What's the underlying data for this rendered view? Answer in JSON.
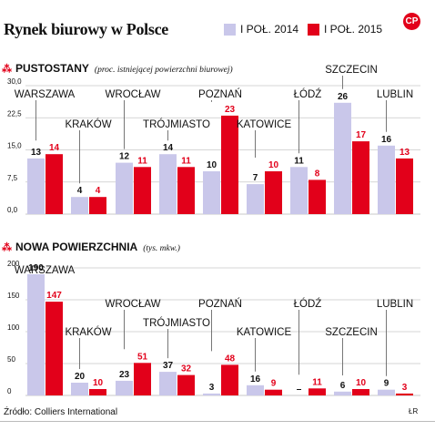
{
  "header": {
    "title": "Rynek biurowy w Polsce",
    "logo": "CP"
  },
  "legend": [
    {
      "label": "I POŁ. 2014",
      "color": "#c9c7ea"
    },
    {
      "label": "I POŁ. 2015",
      "color": "#e2001a"
    }
  ],
  "footer": {
    "source": "Źródło: Colliers International",
    "credit": "ŁR"
  },
  "colors": {
    "s2014": "#c9c7ea",
    "s2015": "#e2001a",
    "grid": "#c8c8c8",
    "leader": "#555555"
  },
  "chart_data": [
    {
      "type": "bar",
      "title": "PUSTOSTANY",
      "subtitle": "(proc. istniejącej powierzchni biurowej)",
      "categories": [
        "WARSZAWA",
        "KRAKÓW",
        "WROCŁAW",
        "TRÓJMIASTO",
        "POZNAŃ",
        "KATOWICE",
        "ŁÓDŹ",
        "SZCZECIN",
        "LUBLIN"
      ],
      "series": [
        {
          "name": "I POŁ. 2014",
          "values": [
            13,
            4,
            12,
            14,
            10,
            7,
            11,
            26,
            16
          ],
          "labels": [
            "13",
            "4",
            "12",
            "14",
            "10",
            "7",
            "11",
            "26",
            "16"
          ]
        },
        {
          "name": "I POŁ. 2015",
          "values": [
            14,
            4,
            11,
            11,
            23,
            10,
            8,
            17,
            13
          ],
          "labels": [
            "14",
            "4",
            "11",
            "11",
            "23",
            "10",
            "8",
            "17",
            "13"
          ]
        }
      ],
      "yticks": [
        "30,0",
        "22,5",
        "15,0",
        "7,5",
        "0,0"
      ],
      "ytick_values": [
        30,
        22.5,
        15,
        7.5,
        0
      ],
      "ylim": [
        0,
        30
      ],
      "grid": true
    },
    {
      "type": "bar",
      "title": "NOWA POWIERZCHNIA",
      "subtitle": "(tys. mkw.)",
      "categories": [
        "WARSZAWA",
        "KRAKÓW",
        "WROCŁAW",
        "TRÓJMIASTO",
        "POZNAŃ",
        "KATOWICE",
        "ŁÓDŹ",
        "SZCZECIN",
        "LUBLIN"
      ],
      "series": [
        {
          "name": "I POŁ. 2014",
          "values": [
            190,
            20,
            23,
            37,
            3,
            16,
            0,
            6,
            9
          ],
          "labels": [
            "190",
            "20",
            "23",
            "37",
            "3",
            "16",
            "–",
            "6",
            "9"
          ]
        },
        {
          "name": "I POŁ. 2015",
          "values": [
            147,
            10,
            51,
            32,
            48,
            9,
            11,
            10,
            3
          ],
          "labels": [
            "147",
            "10",
            "51",
            "32",
            "48",
            "9",
            "11",
            "10",
            "3"
          ]
        }
      ],
      "yticks": [
        "200",
        "150",
        "100",
        "50",
        "0"
      ],
      "ytick_values": [
        200,
        150,
        100,
        50,
        0
      ],
      "ylim": [
        0,
        200
      ],
      "grid": true
    }
  ]
}
